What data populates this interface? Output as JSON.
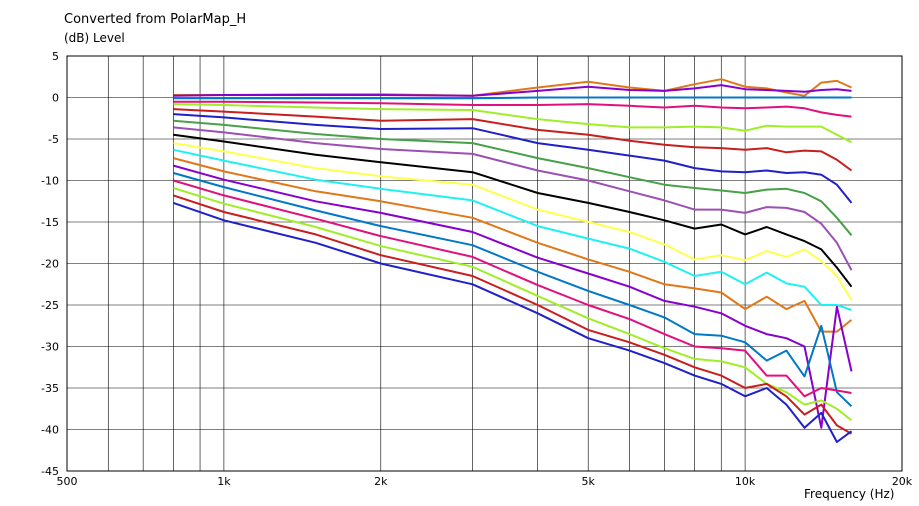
{
  "chart_data": {
    "type": "line",
    "title": "Converted from PolarMap_H",
    "ylabel": "(dB)  Level",
    "xlabel": "Frequency  (Hz)",
    "xscale": "log",
    "xlim": [
      500,
      20000
    ],
    "ylim": [
      -45,
      5
    ],
    "grid": true,
    "x_ticks": [
      {
        "value": 500,
        "label": "500"
      },
      {
        "value": 1000,
        "label": "1k"
      },
      {
        "value": 2000,
        "label": "2k"
      },
      {
        "value": 5000,
        "label": "5k"
      },
      {
        "value": 10000,
        "label": "10k"
      },
      {
        "value": 20000,
        "label": "20k"
      }
    ],
    "y_ticks": [
      5,
      0,
      -5,
      -10,
      -15,
      -20,
      -25,
      -30,
      -35,
      -40,
      -45
    ],
    "x": [
      800,
      1000,
      1500,
      2000,
      3000,
      4000,
      5000,
      6000,
      7000,
      8000,
      9000,
      10000,
      11000,
      12000,
      13000,
      14000,
      15000,
      16000
    ],
    "series": [
      {
        "color": "#e07818",
        "values": [
          0.3,
          0.3,
          0.4,
          0.4,
          0.2,
          1.2,
          1.9,
          1.2,
          0.8,
          1.6,
          2.2,
          1.3,
          1.1,
          0.6,
          0.2,
          1.8,
          2.0,
          1.2
        ]
      },
      {
        "color": "#8800cc",
        "values": [
          0.2,
          0.3,
          0.3,
          0.3,
          0.2,
          0.8,
          1.3,
          0.9,
          0.8,
          1.1,
          1.5,
          1.0,
          0.9,
          0.8,
          0.7,
          0.9,
          1.0,
          0.8
        ]
      },
      {
        "color": "#0078c8",
        "values": [
          -0.1,
          -0.1,
          -0.1,
          -0.1,
          -0.1,
          0.0,
          0.0,
          0.0,
          0.0,
          0.0,
          0.0,
          0.0,
          0.0,
          0.0,
          0.0,
          0.0,
          0.0,
          0.0
        ]
      },
      {
        "color": "#e0107c",
        "values": [
          -0.5,
          -0.5,
          -0.6,
          -0.7,
          -0.9,
          -0.9,
          -0.8,
          -1.0,
          -1.2,
          -1.0,
          -1.2,
          -1.3,
          -1.2,
          -1.1,
          -1.3,
          -1.8,
          -2.1,
          -2.3
        ]
      },
      {
        "color": "#a0ee28",
        "values": [
          -0.8,
          -0.9,
          -1.2,
          -1.4,
          -1.5,
          -2.6,
          -3.2,
          -3.6,
          -3.6,
          -3.5,
          -3.6,
          -4.0,
          -3.4,
          -3.5,
          -3.5,
          -3.5,
          -4.5,
          -5.4
        ]
      },
      {
        "color": "#c81e1e",
        "values": [
          -1.4,
          -1.7,
          -2.3,
          -2.8,
          -2.6,
          -3.9,
          -4.5,
          -5.2,
          -5.7,
          -6.0,
          -6.1,
          -6.3,
          -6.1,
          -6.6,
          -6.4,
          -6.5,
          -7.5,
          -8.8
        ]
      },
      {
        "color": "#2020c8",
        "values": [
          -2.0,
          -2.4,
          -3.3,
          -3.8,
          -3.7,
          -5.5,
          -6.3,
          -7.0,
          -7.6,
          -8.5,
          -8.9,
          -9.0,
          -8.8,
          -9.1,
          -9.0,
          -9.3,
          -10.5,
          -12.7
        ]
      },
      {
        "color": "#48a048",
        "values": [
          -2.8,
          -3.3,
          -4.4,
          -5.0,
          -5.5,
          -7.3,
          -8.5,
          -9.6,
          -10.5,
          -10.9,
          -11.2,
          -11.5,
          -11.1,
          -11.0,
          -11.5,
          -12.5,
          -14.5,
          -16.6
        ]
      },
      {
        "color": "#9c50b4",
        "values": [
          -3.6,
          -4.2,
          -5.5,
          -6.2,
          -6.8,
          -8.8,
          -10.0,
          -11.3,
          -12.4,
          -13.5,
          -13.5,
          -13.9,
          -13.2,
          -13.3,
          -13.8,
          -15.2,
          -17.5,
          -20.8
        ]
      },
      {
        "color": "#000000",
        "values": [
          -4.5,
          -5.3,
          -6.9,
          -7.8,
          -9.0,
          -11.5,
          -12.7,
          -13.8,
          -14.8,
          -15.8,
          -15.3,
          -16.5,
          -15.6,
          -16.5,
          -17.3,
          -18.3,
          -20.5,
          -22.8
        ]
      },
      {
        "color": "#ffff50",
        "values": [
          -5.5,
          -6.5,
          -8.5,
          -9.5,
          -10.5,
          -13.5,
          -15.0,
          -16.2,
          -17.7,
          -19.5,
          -19.0,
          -19.6,
          -18.5,
          -19.2,
          -18.3,
          -19.7,
          -21.5,
          -24.4
        ]
      },
      {
        "color": "#20f0f0",
        "values": [
          -6.3,
          -7.6,
          -9.9,
          -11.0,
          -12.4,
          -15.5,
          -17.0,
          -18.2,
          -19.8,
          -21.5,
          -21.0,
          -22.5,
          -21.1,
          -22.4,
          -22.8,
          -25.0,
          -25.0,
          -25.6
        ]
      },
      {
        "color": "#e07818",
        "values": [
          -7.3,
          -8.9,
          -11.3,
          -12.5,
          -14.5,
          -17.5,
          -19.5,
          -21.0,
          -22.5,
          -23.0,
          -23.5,
          -25.5,
          -24.0,
          -25.5,
          -24.5,
          -28.2,
          -28.2,
          -26.8
        ]
      },
      {
        "color": "#8800cc",
        "values": [
          -8.2,
          -9.9,
          -12.5,
          -13.9,
          -16.2,
          -19.3,
          -21.2,
          -22.8,
          -24.5,
          -25.2,
          -26.0,
          -27.5,
          -28.5,
          -29.0,
          -30.0,
          -39.8,
          -25.2,
          -33.0
        ]
      },
      {
        "color": "#0078c8",
        "values": [
          -9.1,
          -10.8,
          -13.6,
          -15.5,
          -17.8,
          -21.0,
          -23.3,
          -25.0,
          -26.5,
          -28.5,
          -28.7,
          -29.5,
          -31.7,
          -30.5,
          -33.6,
          -27.5,
          -35.5,
          -37.2
        ]
      },
      {
        "color": "#e0107c",
        "values": [
          -10.0,
          -11.8,
          -14.6,
          -16.7,
          -19.2,
          -22.6,
          -25.0,
          -26.7,
          -28.5,
          -30.0,
          -30.2,
          -30.5,
          -33.5,
          -33.5,
          -36.0,
          -35.0,
          -35.3,
          -35.6
        ]
      },
      {
        "color": "#a0ee28",
        "values": [
          -10.9,
          -12.8,
          -15.6,
          -17.9,
          -20.4,
          -23.9,
          -26.6,
          -28.5,
          -30.2,
          -31.5,
          -31.8,
          -32.5,
          -34.5,
          -35.5,
          -37.0,
          -36.5,
          -37.5,
          -38.9
        ]
      },
      {
        "color": "#c81e1e",
        "values": [
          -11.8,
          -13.8,
          -16.5,
          -19.0,
          -21.5,
          -25.0,
          -28.0,
          -29.5,
          -31.0,
          -32.5,
          -33.5,
          -35.0,
          -34.5,
          -36.0,
          -38.2,
          -37.0,
          -39.5,
          -40.5
        ]
      },
      {
        "color": "#2020c8",
        "values": [
          -12.7,
          -14.8,
          -17.5,
          -20.0,
          -22.5,
          -26.0,
          -29.0,
          -30.5,
          -32.0,
          -33.5,
          -34.5,
          -36.0,
          -35.0,
          -37.0,
          -39.8,
          -38.0,
          -41.5,
          -40.2
        ]
      }
    ]
  }
}
